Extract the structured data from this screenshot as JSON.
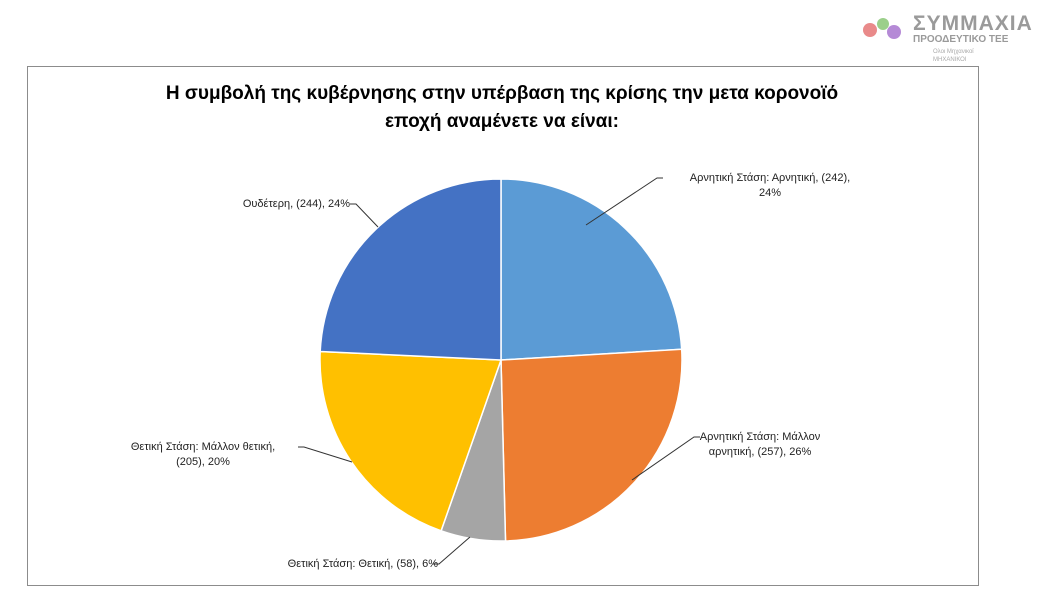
{
  "logo": {
    "name": "ΣΥΜΜΑΧΙΑ",
    "subtitle": "ΠΡΟΟΔΕΥΤΙΚΟ ΤΕΕ",
    "partners": [
      "Ολοι Μηχανικοί",
      "ΜΗΧΑΝΙΚΟΙ"
    ]
  },
  "chart_data": {
    "type": "pie",
    "title": "Η συμβολή της κυβέρνησης στην υπέρβαση της κρίσης την μετα κορονοϊό εποχή αναμένετε να είναι:",
    "title_lines": [
      "Η συμβολή της κυβέρνησης στην υπέρβαση της κρίσης την μετα κορονοϊό",
      "εποχή αναμένετε να είναι:"
    ],
    "slices": [
      {
        "label": "Αρνητική Στάση: Αρνητική",
        "value": 242,
        "percent": "24%",
        "color": "#5b9bd5",
        "text1": "Αρνητική Στάση: Αρνητική, (242),",
        "text2": "24%"
      },
      {
        "label": "Αρνητική Στάση: Μάλλον αρνητική",
        "value": 257,
        "percent": "26%",
        "color": "#ed7d31",
        "text1": "Αρνητική Στάση: Μάλλον",
        "text2": "αρνητική, (257), 26%"
      },
      {
        "label": "Θετική Στάση: Θετική",
        "value": 58,
        "percent": "6%",
        "color": "#a5a5a5",
        "text1": "Θετική Στάση:  Θετική, (58), 6%",
        "text2": ""
      },
      {
        "label": "Θετική Στάση: Μάλλον θετική",
        "value": 205,
        "percent": "20%",
        "color": "#ffc000",
        "text1": "Θετική Στάση:  Μάλλον θετική,",
        "text2": "(205), 20%"
      },
      {
        "label": "Ουδέτερη",
        "value": 244,
        "percent": "24%",
        "color": "#4472c4",
        "text1": "Ουδέτερη, (244), 24%",
        "text2": ""
      }
    ]
  }
}
